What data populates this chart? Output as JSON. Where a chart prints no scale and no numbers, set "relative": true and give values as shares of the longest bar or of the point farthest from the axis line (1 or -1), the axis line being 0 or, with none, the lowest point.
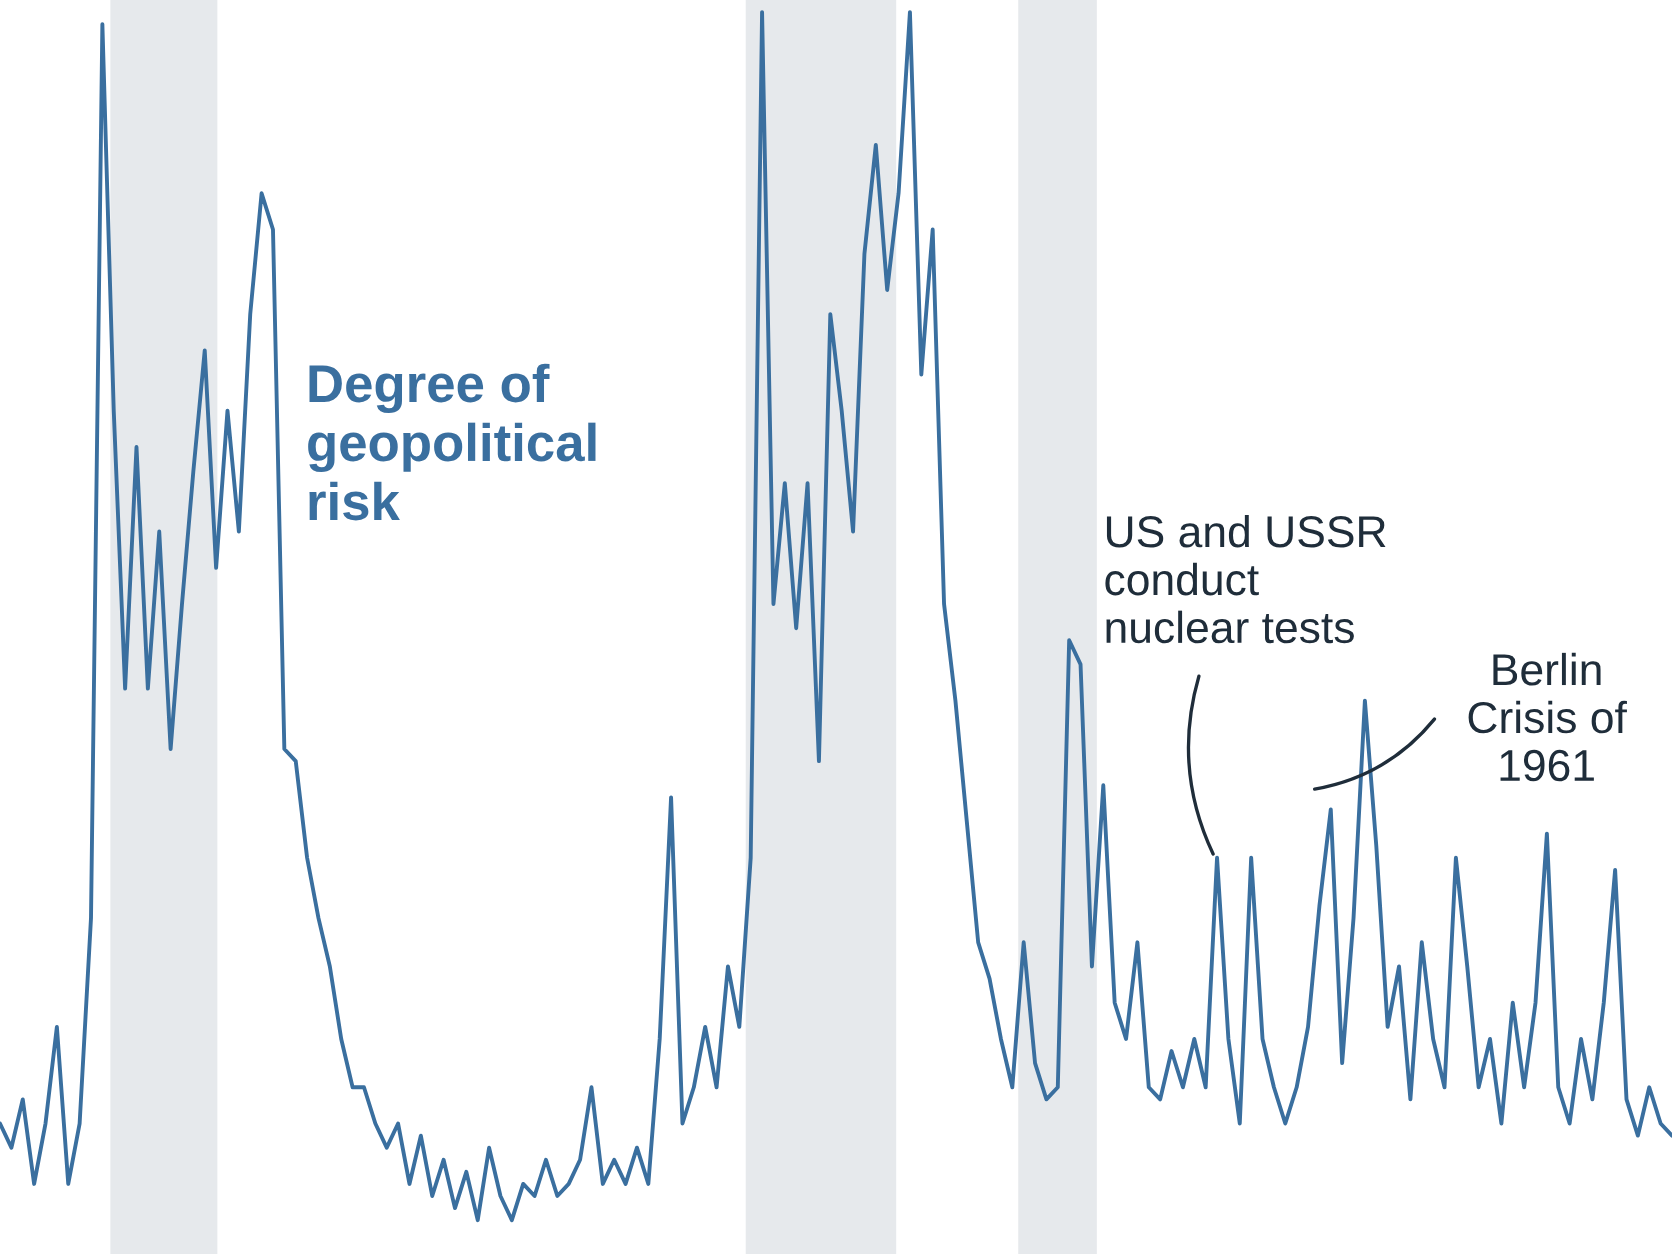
{
  "chart_data": {
    "type": "line",
    "relative": true,
    "categories": [
      null,
      null,
      null,
      null,
      null,
      null,
      null,
      null,
      null,
      null,
      null,
      null,
      null,
      null,
      null,
      null,
      null,
      null,
      null,
      null,
      null,
      null,
      null,
      null,
      null,
      null,
      null,
      null,
      null,
      null,
      null,
      null,
      null,
      null,
      null,
      null,
      null,
      null,
      null,
      null,
      null,
      null,
      null,
      null,
      null,
      null,
      null,
      null,
      null,
      null,
      null,
      null,
      null,
      null,
      null,
      null,
      null,
      null,
      null,
      null,
      null,
      null,
      null,
      null,
      null,
      null,
      null,
      null,
      null,
      null,
      null,
      null,
      null,
      null,
      null,
      null,
      null,
      null,
      null,
      null,
      null,
      null,
      null,
      null,
      null,
      null,
      null,
      null,
      null,
      null,
      null,
      null,
      null,
      null,
      null,
      null,
      null,
      null,
      null,
      null,
      null,
      null,
      null,
      null,
      null,
      null,
      null,
      null,
      null,
      null,
      null,
      null,
      null,
      null,
      null,
      null,
      null,
      null,
      null,
      null,
      null,
      null,
      null,
      null,
      null,
      null,
      null,
      null,
      null,
      null,
      null,
      null,
      null,
      null,
      null,
      null,
      null,
      null,
      null,
      null,
      null,
      null,
      null,
      null,
      null,
      null,
      null,
      null
    ],
    "series": [
      {
        "name": "Degree of\ngeopolitical\nrisk",
        "color": "#3a6f9f",
        "values": [
          0.08,
          0.06,
          0.1,
          0.03,
          0.08,
          0.16,
          0.03,
          0.08,
          0.25,
          0.99,
          0.67,
          0.44,
          0.64,
          0.44,
          0.57,
          0.39,
          0.51,
          0.62,
          0.72,
          0.54,
          0.67,
          0.57,
          0.75,
          0.85,
          0.82,
          0.39,
          0.38,
          0.3,
          0.25,
          0.21,
          0.15,
          0.11,
          0.11,
          0.08,
          0.06,
          0.08,
          0.03,
          0.07,
          0.02,
          0.05,
          0.01,
          0.04,
          0,
          0.06,
          0.02,
          0,
          0.03,
          0.02,
          0.05,
          0.02,
          0.03,
          0.05,
          0.11,
          0.03,
          0.05,
          0.03,
          0.06,
          0.03,
          0.15,
          0.35,
          0.08,
          0.11,
          0.16,
          0.11,
          0.21,
          0.16,
          0.3,
          1,
          0.51,
          0.61,
          0.49,
          0.61,
          0.38,
          0.75,
          0.67,
          0.57,
          0.8,
          0.89,
          0.77,
          0.85,
          1,
          0.7,
          0.82,
          0.51,
          0.43,
          0.33,
          0.23,
          0.2,
          0.15,
          0.11,
          0.23,
          0.13,
          0.1,
          0.11,
          0.48,
          0.46,
          0.21,
          0.36,
          0.18,
          0.15,
          0.23,
          0.11,
          0.1,
          0.14,
          0.11,
          0.15,
          0.11,
          0.3,
          0.15,
          0.08,
          0.3,
          0.15,
          0.11,
          0.08,
          0.11,
          0.16,
          0.26,
          0.34,
          0.13,
          0.25,
          0.43,
          0.31,
          0.16,
          0.21,
          0.1,
          0.23,
          0.15,
          0.11,
          0.3,
          0.21,
          0.11,
          0.15,
          0.08,
          0.18,
          0.11,
          0.18,
          0.32,
          0.11,
          0.08,
          0.15,
          0.1,
          0.18,
          0.29,
          0.1,
          0.07,
          0.11,
          0.08,
          0.07
        ]
      }
    ],
    "annotations": [
      "US and USSR\nconduct\nnuclear tests",
      "Berlin\nCrisis of\n1961"
    ]
  }
}
